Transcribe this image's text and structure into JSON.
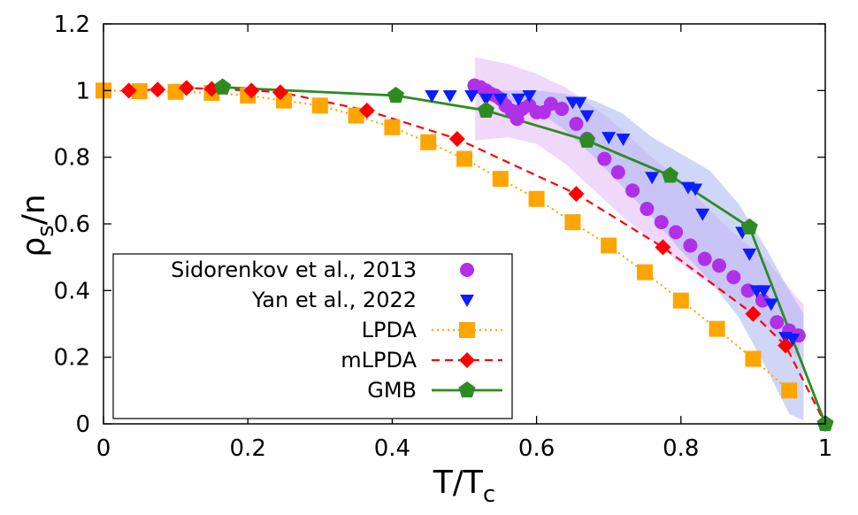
{
  "chart_data": {
    "type": "scatter",
    "title": "",
    "xlabel": "T/T",
    "xlabel_sub": "c",
    "ylabel": "ρ",
    "ylabel_sub": "s",
    "ylabel_suffix": "/n",
    "xlim": [
      0,
      1
    ],
    "ylim": [
      0,
      1.2
    ],
    "x_ticks": [
      0,
      0.2,
      0.4,
      0.6,
      0.8,
      1
    ],
    "x_tick_labels": [
      "0",
      "0.2",
      "0.4",
      "0.6",
      "0.8",
      "1"
    ],
    "y_ticks": [
      0,
      0.2,
      0.4,
      0.6,
      0.8,
      1,
      1.2
    ],
    "y_tick_labels": [
      "0",
      "0.2",
      "0.4",
      "0.6",
      "0.8",
      "1",
      "1.2"
    ],
    "grid": false,
    "legend_position": "bottom-left",
    "bands": [
      {
        "color": "#e4b8f5",
        "upper": [
          [
            0.515,
            1.1
          ],
          [
            0.56,
            1.08
          ],
          [
            0.6,
            1.05
          ],
          [
            0.64,
            1.01
          ],
          [
            0.68,
            0.95
          ],
          [
            0.72,
            0.88
          ],
          [
            0.76,
            0.8
          ],
          [
            0.8,
            0.73
          ],
          [
            0.84,
            0.64
          ],
          [
            0.88,
            0.56
          ],
          [
            0.92,
            0.49
          ],
          [
            0.96,
            0.38
          ],
          [
            0.97,
            0.36
          ]
        ],
        "lower": [
          [
            0.97,
            0.27
          ],
          [
            0.96,
            0.2
          ],
          [
            0.92,
            0.29
          ],
          [
            0.88,
            0.36
          ],
          [
            0.84,
            0.42
          ],
          [
            0.8,
            0.48
          ],
          [
            0.76,
            0.55
          ],
          [
            0.72,
            0.62
          ],
          [
            0.68,
            0.7
          ],
          [
            0.64,
            0.78
          ],
          [
            0.6,
            0.84
          ],
          [
            0.56,
            0.86
          ],
          [
            0.515,
            0.85
          ]
        ]
      },
      {
        "color": "#aab4f2",
        "upper": [
          [
            0.52,
            1.0
          ],
          [
            0.56,
            1.0
          ],
          [
            0.6,
            1.0
          ],
          [
            0.64,
            0.99
          ],
          [
            0.68,
            0.97
          ],
          [
            0.72,
            0.93
          ],
          [
            0.76,
            0.86
          ],
          [
            0.8,
            0.81
          ],
          [
            0.84,
            0.76
          ],
          [
            0.88,
            0.66
          ],
          [
            0.92,
            0.52
          ],
          [
            0.95,
            0.4
          ],
          [
            0.97,
            0.33
          ]
        ],
        "lower": [
          [
            0.97,
            0.01
          ],
          [
            0.95,
            0.03
          ],
          [
            0.92,
            0.16
          ],
          [
            0.88,
            0.32
          ],
          [
            0.84,
            0.43
          ],
          [
            0.8,
            0.52
          ],
          [
            0.76,
            0.62
          ],
          [
            0.72,
            0.71
          ],
          [
            0.68,
            0.8
          ],
          [
            0.64,
            0.88
          ],
          [
            0.6,
            0.94
          ],
          [
            0.56,
            0.97
          ],
          [
            0.52,
            0.98
          ]
        ]
      }
    ],
    "series": [
      {
        "name": "Sidorenkov et al., 2013",
        "marker": "circle",
        "line": "none",
        "color": "#b030e8",
        "points": [
          [
            0.514,
            1.015
          ],
          [
            0.522,
            1.01
          ],
          [
            0.53,
            1.0
          ],
          [
            0.537,
            0.99
          ],
          [
            0.543,
            0.985
          ],
          [
            0.55,
            0.975
          ],
          [
            0.557,
            0.955
          ],
          [
            0.565,
            0.94
          ],
          [
            0.573,
            0.915
          ],
          [
            0.58,
            0.945
          ],
          [
            0.59,
            0.955
          ],
          [
            0.6,
            0.935
          ],
          [
            0.61,
            0.935
          ],
          [
            0.62,
            0.96
          ],
          [
            0.635,
            0.945
          ],
          [
            0.655,
            0.9
          ],
          [
            0.67,
            0.855
          ],
          [
            0.694,
            0.795
          ],
          [
            0.713,
            0.755
          ],
          [
            0.733,
            0.7
          ],
          [
            0.753,
            0.645
          ],
          [
            0.773,
            0.605
          ],
          [
            0.793,
            0.575
          ],
          [
            0.813,
            0.535
          ],
          [
            0.833,
            0.495
          ],
          [
            0.853,
            0.475
          ],
          [
            0.873,
            0.44
          ],
          [
            0.893,
            0.4
          ],
          [
            0.913,
            0.37
          ],
          [
            0.933,
            0.305
          ],
          [
            0.95,
            0.28
          ],
          [
            0.963,
            0.265
          ]
        ]
      },
      {
        "name": "Yan et al., 2022",
        "marker": "triangle-down",
        "line": "none",
        "color": "#0a1eff",
        "points": [
          [
            0.455,
            0.985
          ],
          [
            0.48,
            0.985
          ],
          [
            0.51,
            0.985
          ],
          [
            0.53,
            0.975
          ],
          [
            0.55,
            0.975
          ],
          [
            0.575,
            0.975
          ],
          [
            0.59,
            0.985
          ],
          [
            0.65,
            0.965
          ],
          [
            0.66,
            0.965
          ],
          [
            0.67,
            0.925
          ],
          [
            0.7,
            0.86
          ],
          [
            0.72,
            0.855
          ],
          [
            0.76,
            0.74
          ],
          [
            0.81,
            0.71
          ],
          [
            0.82,
            0.705
          ],
          [
            0.83,
            0.63
          ],
          [
            0.885,
            0.575
          ],
          [
            0.895,
            0.51
          ],
          [
            0.905,
            0.4
          ],
          [
            0.915,
            0.4
          ],
          [
            0.925,
            0.36
          ],
          [
            0.945,
            0.26
          ],
          [
            0.955,
            0.255
          ]
        ]
      },
      {
        "name": "LPDA",
        "marker": "square",
        "line": "dotted",
        "color": "#ffa500",
        "points": [
          [
            0.0,
            1.0
          ],
          [
            0.05,
            0.998
          ],
          [
            0.1,
            0.996
          ],
          [
            0.15,
            0.993
          ],
          [
            0.2,
            0.985
          ],
          [
            0.25,
            0.97
          ],
          [
            0.3,
            0.955
          ],
          [
            0.35,
            0.925
          ],
          [
            0.4,
            0.89
          ],
          [
            0.45,
            0.845
          ],
          [
            0.5,
            0.795
          ],
          [
            0.55,
            0.735
          ],
          [
            0.6,
            0.675
          ],
          [
            0.65,
            0.605
          ],
          [
            0.7,
            0.535
          ],
          [
            0.75,
            0.455
          ],
          [
            0.8,
            0.37
          ],
          [
            0.85,
            0.285
          ],
          [
            0.9,
            0.195
          ],
          [
            0.95,
            0.1
          ]
        ]
      },
      {
        "name": "mLPDA",
        "marker": "diamond",
        "line": "dashed",
        "color": "#ff0000",
        "points": [
          [
            0.035,
            1.0
          ],
          [
            0.075,
            1.003
          ],
          [
            0.115,
            1.008
          ],
          [
            0.15,
            1.005
          ],
          [
            0.205,
            1.0
          ],
          [
            0.245,
            0.995
          ],
          [
            0.365,
            0.94
          ],
          [
            0.49,
            0.855
          ],
          [
            0.655,
            0.69
          ],
          [
            0.775,
            0.53
          ],
          [
            0.9,
            0.33
          ],
          [
            0.945,
            0.235
          ],
          [
            1.0,
            0.0
          ]
        ]
      },
      {
        "name": "GMB",
        "marker": "pentagon",
        "line": "solid",
        "color": "#2e8b22",
        "points": [
          [
            0.165,
            1.01
          ],
          [
            0.405,
            0.985
          ],
          [
            0.53,
            0.94
          ],
          [
            0.67,
            0.85
          ],
          [
            0.785,
            0.745
          ],
          [
            0.895,
            0.59
          ],
          [
            1.0,
            0.0
          ]
        ]
      }
    ]
  }
}
